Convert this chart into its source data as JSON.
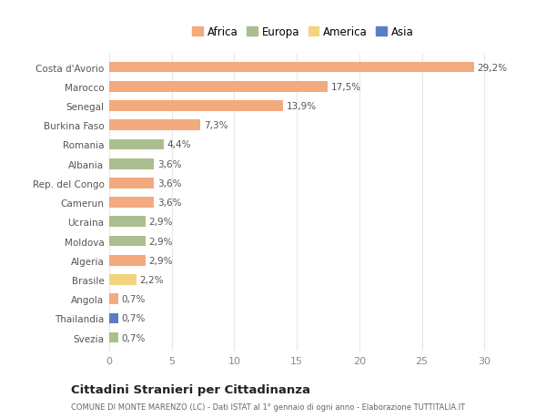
{
  "countries": [
    "Costa d'Avorio",
    "Marocco",
    "Senegal",
    "Burkina Faso",
    "Romania",
    "Albania",
    "Rep. del Congo",
    "Camerun",
    "Ucraina",
    "Moldova",
    "Algeria",
    "Brasile",
    "Angola",
    "Thailandia",
    "Svezia"
  ],
  "values": [
    29.2,
    17.5,
    13.9,
    7.3,
    4.4,
    3.6,
    3.6,
    3.6,
    2.9,
    2.9,
    2.9,
    2.2,
    0.7,
    0.7,
    0.7
  ],
  "labels": [
    "29,2%",
    "17,5%",
    "13,9%",
    "7,3%",
    "4,4%",
    "3,6%",
    "3,6%",
    "3,6%",
    "2,9%",
    "2,9%",
    "2,9%",
    "2,2%",
    "0,7%",
    "0,7%",
    "0,7%"
  ],
  "continents": [
    "Africa",
    "Africa",
    "Africa",
    "Africa",
    "Europa",
    "Europa",
    "Africa",
    "Africa",
    "Europa",
    "Europa",
    "Africa",
    "America",
    "Africa",
    "Asia",
    "Europa"
  ],
  "colors": {
    "Africa": "#F2AA7E",
    "Europa": "#ABBE8F",
    "America": "#F2D47E",
    "Asia": "#5B7DC8"
  },
  "legend_order": [
    "Africa",
    "Europa",
    "America",
    "Asia"
  ],
  "title": "Cittadini Stranieri per Cittadinanza",
  "subtitle": "COMUNE DI MONTE MARENZO (LC) - Dati ISTAT al 1° gennaio di ogni anno - Elaborazione TUTTITALIA.IT",
  "xlim": [
    0,
    31
  ],
  "xticks": [
    0,
    5,
    10,
    15,
    20,
    25,
    30
  ],
  "background_color": "#ffffff",
  "grid_color": "#e8e8e8",
  "bar_height": 0.55
}
